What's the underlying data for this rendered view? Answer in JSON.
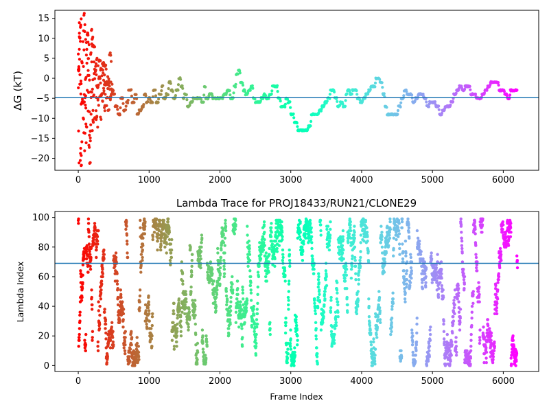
{
  "figure": {
    "background": "#ffffff"
  },
  "chart_data": [
    {
      "id": "top",
      "type": "scatter",
      "title": "",
      "xlabel": "",
      "ylabel": "ΔG (kT)",
      "xlim": [
        -330,
        6500
      ],
      "ylim": [
        -23,
        17
      ],
      "xticks": [
        0,
        1000,
        2000,
        3000,
        4000,
        5000,
        6000
      ],
      "yticks": [
        -20,
        -15,
        -10,
        -5,
        0,
        5,
        10,
        15
      ],
      "hline": -4.8,
      "hline_color": "#1f77b4",
      "colormap": "rainbow",
      "color_encodes": "frame index (rainbow, reversed: red at 0, violet at 6200)",
      "x_max": 6200,
      "trace_points": [
        [
          0,
          2
        ],
        [
          15,
          10
        ],
        [
          30,
          13
        ],
        [
          40,
          -22
        ],
        [
          50,
          4
        ],
        [
          60,
          -6
        ],
        [
          70,
          -10
        ],
        [
          80,
          16
        ],
        [
          90,
          -14
        ],
        [
          100,
          0
        ],
        [
          115,
          -12
        ],
        [
          125,
          11
        ],
        [
          140,
          5
        ],
        [
          150,
          -17
        ],
        [
          160,
          -21
        ],
        [
          175,
          6
        ],
        [
          185,
          12
        ],
        [
          195,
          10
        ],
        [
          210,
          8
        ],
        [
          230,
          2
        ],
        [
          260,
          -2
        ],
        [
          290,
          0
        ],
        [
          320,
          -4
        ],
        [
          340,
          4
        ],
        [
          370,
          3
        ],
        [
          400,
          -1
        ],
        [
          420,
          -8
        ],
        [
          440,
          6
        ],
        [
          470,
          -3
        ],
        [
          500,
          -4
        ],
        [
          520,
          -7
        ],
        [
          560,
          -9
        ],
        [
          600,
          -5
        ],
        [
          640,
          -8
        ],
        [
          680,
          -6
        ],
        [
          710,
          -3
        ],
        [
          760,
          -6
        ],
        [
          800,
          -4
        ],
        [
          830,
          -9
        ],
        [
          860,
          -8
        ],
        [
          900,
          -7
        ],
        [
          930,
          -4
        ],
        [
          960,
          -6
        ],
        [
          990,
          -5
        ],
        [
          1020,
          -6
        ],
        [
          1060,
          -3
        ],
        [
          1100,
          -6
        ],
        [
          1140,
          -4
        ],
        [
          1180,
          -2
        ],
        [
          1200,
          -5
        ],
        [
          1240,
          -4
        ],
        [
          1280,
          -1
        ],
        [
          1310,
          -3
        ],
        [
          1340,
          -5
        ],
        [
          1380,
          -3
        ],
        [
          1420,
          0
        ],
        [
          1450,
          -2
        ],
        [
          1480,
          -5
        ],
        [
          1500,
          -4
        ],
        [
          1540,
          -7
        ],
        [
          1580,
          -6
        ],
        [
          1620,
          -5
        ],
        [
          1660,
          -5
        ],
        [
          1700,
          -5
        ],
        [
          1740,
          -6
        ],
        [
          1780,
          -2
        ],
        [
          1800,
          -5
        ],
        [
          1850,
          -4
        ],
        [
          1900,
          -5
        ],
        [
          1950,
          -5
        ],
        [
          2000,
          -5
        ],
        [
          2050,
          -4
        ],
        [
          2100,
          -3
        ],
        [
          2150,
          -5
        ],
        [
          2200,
          -2
        ],
        [
          2230,
          1
        ],
        [
          2260,
          2
        ],
        [
          2290,
          -1
        ],
        [
          2330,
          -3
        ],
        [
          2360,
          -4
        ],
        [
          2400,
          -3
        ],
        [
          2440,
          -2
        ],
        [
          2470,
          -5
        ],
        [
          2500,
          -6
        ],
        [
          2550,
          -6
        ],
        [
          2580,
          -5
        ],
        [
          2620,
          -4
        ],
        [
          2650,
          -5
        ],
        [
          2700,
          -4
        ],
        [
          2740,
          -2
        ],
        [
          2780,
          -2
        ],
        [
          2820,
          -5
        ],
        [
          2860,
          -7
        ],
        [
          2900,
          -7
        ],
        [
          2930,
          -5
        ],
        [
          2960,
          -6
        ],
        [
          3000,
          -9
        ],
        [
          3050,
          -11
        ],
        [
          3100,
          -13
        ],
        [
          3150,
          -13
        ],
        [
          3200,
          -13
        ],
        [
          3250,
          -12
        ],
        [
          3290,
          -9
        ],
        [
          3320,
          -9
        ],
        [
          3360,
          -9
        ],
        [
          3400,
          -8
        ],
        [
          3440,
          -7
        ],
        [
          3480,
          -6
        ],
        [
          3520,
          -5
        ],
        [
          3560,
          -3
        ],
        [
          3590,
          -3
        ],
        [
          3620,
          -5
        ],
        [
          3660,
          -7
        ],
        [
          3700,
          -6
        ],
        [
          3740,
          -7
        ],
        [
          3780,
          -4
        ],
        [
          3800,
          -3
        ],
        [
          3840,
          -4
        ],
        [
          3870,
          -3
        ],
        [
          3900,
          -3
        ],
        [
          3940,
          -5
        ],
        [
          3980,
          -6
        ],
        [
          4020,
          -5
        ],
        [
          4060,
          -4
        ],
        [
          4100,
          -3
        ],
        [
          4130,
          -2
        ],
        [
          4160,
          -2
        ],
        [
          4200,
          0
        ],
        [
          4230,
          0
        ],
        [
          4260,
          -1
        ],
        [
          4300,
          -4
        ],
        [
          4330,
          -7
        ],
        [
          4360,
          -9
        ],
        [
          4400,
          -9
        ],
        [
          4440,
          -9
        ],
        [
          4480,
          -9
        ],
        [
          4520,
          -7
        ],
        [
          4560,
          -5
        ],
        [
          4600,
          -3
        ],
        [
          4640,
          -4
        ],
        [
          4680,
          -4
        ],
        [
          4720,
          -6
        ],
        [
          4760,
          -5
        ],
        [
          4800,
          -4
        ],
        [
          4840,
          -4
        ],
        [
          4880,
          -5
        ],
        [
          4920,
          -7
        ],
        [
          4960,
          -6
        ],
        [
          5000,
          -6
        ],
        [
          5050,
          -7
        ],
        [
          5100,
          -9
        ],
        [
          5140,
          -8
        ],
        [
          5180,
          -7
        ],
        [
          5220,
          -7
        ],
        [
          5260,
          -6
        ],
        [
          5300,
          -4
        ],
        [
          5340,
          -3
        ],
        [
          5380,
          -2
        ],
        [
          5420,
          -3
        ],
        [
          5460,
          -2
        ],
        [
          5500,
          -2
        ],
        [
          5540,
          -4
        ],
        [
          5580,
          -4
        ],
        [
          5620,
          -5
        ],
        [
          5660,
          -5
        ],
        [
          5700,
          -4
        ],
        [
          5740,
          -3
        ],
        [
          5780,
          -2
        ],
        [
          5820,
          -1
        ],
        [
          5860,
          -1
        ],
        [
          5900,
          -1
        ],
        [
          5940,
          -3
        ],
        [
          5980,
          -3
        ],
        [
          6020,
          -4
        ],
        [
          6060,
          -5
        ],
        [
          6100,
          -3
        ],
        [
          6150,
          -3
        ],
        [
          6200,
          -3
        ]
      ]
    },
    {
      "id": "bottom",
      "type": "scatter",
      "title": "Lambda Trace for PROJ18433/RUN21/CLONE29",
      "xlabel": "Frame Index",
      "ylabel": "Lambda Index",
      "xlim": [
        -330,
        6500
      ],
      "ylim": [
        -4,
        104
      ],
      "xticks": [
        0,
        1000,
        2000,
        3000,
        4000,
        5000,
        6000
      ],
      "yticks": [
        0,
        20,
        40,
        60,
        80,
        100
      ],
      "hline": 69,
      "hline_color": "#1f77b4",
      "colormap": "rainbow",
      "color_encodes": "frame index (rainbow, reversed: red at 0, violet at 6200)",
      "x_max": 6200,
      "lambda_range": [
        0,
        99
      ],
      "sampling": "dense random walk over lambda indices 0–99 for every frame (~6200 frames)"
    }
  ]
}
